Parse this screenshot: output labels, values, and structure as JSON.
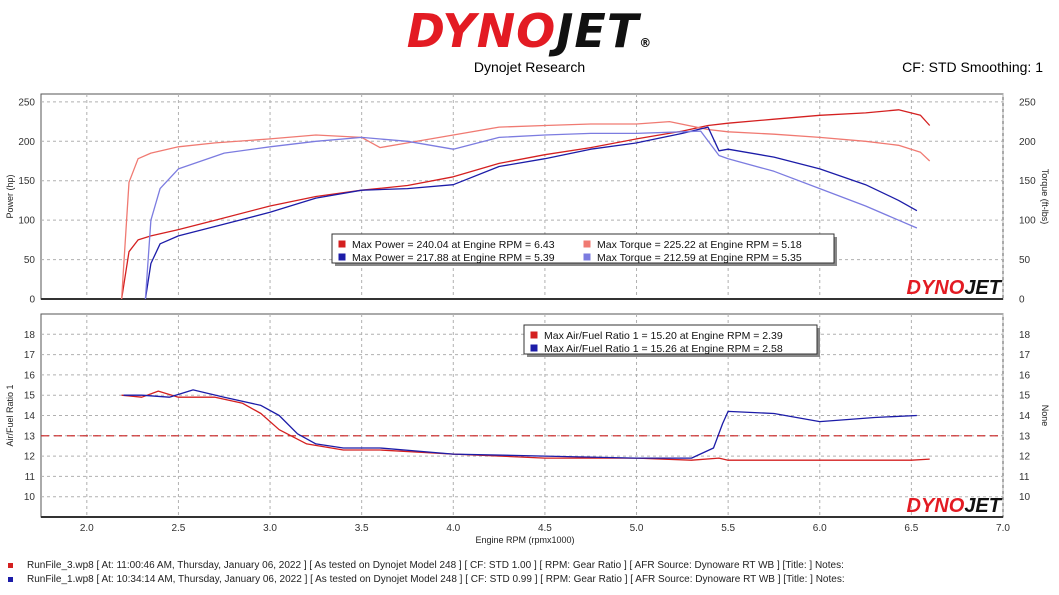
{
  "header": {
    "logo_text_red": "DYNO",
    "logo_text_dark": "JET",
    "logo_reg": "®",
    "subtitle": "Dynojet Research",
    "cf_label": "CF: STD Smoothing: 1"
  },
  "watermark": {
    "red": "DYNO",
    "dark": "JET"
  },
  "colors": {
    "run3": "#d42020",
    "run3_light": "#f07a72",
    "run1": "#1c1ca8",
    "run1_light": "#7c7ce0",
    "ref_line": "#c81e1e",
    "grid": "#b0b0b0"
  },
  "chart_data": [
    {
      "type": "line",
      "title": "",
      "xlabel": "Engine RPM (rpmx1000)",
      "ylabel": "Power (hp)",
      "y2label": "Torque (ft-lbs)",
      "xlim": [
        1.75,
        7.0
      ],
      "ylim": [
        0,
        260
      ],
      "y2lim": [
        0,
        260
      ],
      "x_ticks": [
        2.0,
        2.5,
        3.0,
        3.5,
        4.0,
        4.5,
        5.0,
        5.5,
        6.0,
        6.5,
        7.0
      ],
      "y_ticks": [
        0,
        50,
        100,
        150,
        200,
        250
      ],
      "grid": true,
      "series": [
        {
          "name": "RunFile_3 Power",
          "color": "#d42020",
          "x": [
            2.19,
            2.23,
            2.28,
            2.35,
            2.5,
            2.7,
            3.0,
            3.25,
            3.5,
            3.75,
            4.0,
            4.25,
            4.5,
            4.75,
            5.0,
            5.25,
            5.39,
            5.5,
            5.75,
            6.0,
            6.25,
            6.43,
            6.55,
            6.6
          ],
          "y": [
            0,
            60,
            75,
            80,
            88,
            100,
            118,
            130,
            138,
            144,
            155,
            172,
            183,
            192,
            203,
            213,
            220,
            223,
            228,
            233,
            236,
            240,
            233,
            220
          ]
        },
        {
          "name": "RunFile_3 Torque",
          "color": "#f07a72",
          "x": [
            2.19,
            2.23,
            2.28,
            2.35,
            2.5,
            2.7,
            3.0,
            3.25,
            3.5,
            3.6,
            3.75,
            4.0,
            4.25,
            4.5,
            4.75,
            5.0,
            5.18,
            5.39,
            5.5,
            5.75,
            6.0,
            6.25,
            6.43,
            6.55,
            6.6
          ],
          "y": [
            0,
            148,
            178,
            185,
            193,
            198,
            203,
            208,
            205,
            192,
            198,
            208,
            218,
            220,
            222,
            222,
            225,
            215,
            212,
            209,
            205,
            200,
            195,
            186,
            175
          ]
        },
        {
          "name": "RunFile_1 Power",
          "color": "#1c1ca8",
          "x": [
            2.32,
            2.35,
            2.4,
            2.5,
            2.75,
            3.0,
            3.25,
            3.5,
            3.75,
            4.0,
            4.25,
            4.5,
            4.75,
            5.0,
            5.25,
            5.39,
            5.45,
            5.5,
            5.75,
            6.0,
            6.25,
            6.43,
            6.53
          ],
          "y": [
            0,
            45,
            70,
            80,
            95,
            110,
            128,
            138,
            140,
            145,
            168,
            178,
            190,
            198,
            210,
            218,
            188,
            190,
            180,
            165,
            145,
            125,
            112
          ]
        },
        {
          "name": "RunFile_1 Torque",
          "color": "#7c7ce0",
          "x": [
            2.32,
            2.35,
            2.4,
            2.5,
            2.75,
            3.0,
            3.25,
            3.5,
            3.75,
            4.0,
            4.25,
            4.5,
            4.75,
            5.0,
            5.25,
            5.35,
            5.45,
            5.5,
            5.75,
            6.0,
            6.25,
            6.43,
            6.53
          ],
          "y": [
            0,
            100,
            140,
            165,
            185,
            193,
            200,
            205,
            200,
            190,
            205,
            208,
            210,
            210,
            212,
            213,
            182,
            178,
            162,
            140,
            118,
            100,
            90
          ]
        }
      ],
      "legend": [
        {
          "text": "Max Power = 240.04 at Engine RPM = 6.43",
          "color": "#d42020"
        },
        {
          "text": "Max Power = 217.88 at Engine RPM = 5.39",
          "color": "#1c1ca8"
        },
        {
          "text": "Max Torque = 225.22 at Engine RPM = 5.18",
          "color": "#f07a72"
        },
        {
          "text": "Max Torque = 212.59 at Engine RPM = 5.35",
          "color": "#7c7ce0"
        }
      ]
    },
    {
      "type": "line",
      "title": "",
      "xlabel": "Engine RPM (rpmx1000)",
      "ylabel": "Air/Fuel Ratio 1",
      "y2label": "None",
      "xlim": [
        1.75,
        7.0
      ],
      "ylim": [
        9,
        19
      ],
      "y2lim": [
        9,
        19
      ],
      "y_ticks": [
        10,
        11,
        12,
        13,
        14,
        15,
        16,
        17,
        18
      ],
      "grid": true,
      "reference_line": 13,
      "series": [
        {
          "name": "RunFile_3 AFR",
          "color": "#d42020",
          "x": [
            2.19,
            2.3,
            2.39,
            2.5,
            2.7,
            2.85,
            2.95,
            3.05,
            3.2,
            3.4,
            3.6,
            4.0,
            4.5,
            5.0,
            5.3,
            5.45,
            5.5,
            6.0,
            6.3,
            6.5,
            6.6
          ],
          "y": [
            15.0,
            14.9,
            15.2,
            14.9,
            14.9,
            14.6,
            14.1,
            13.3,
            12.6,
            12.3,
            12.3,
            12.1,
            11.9,
            11.9,
            11.8,
            11.9,
            11.8,
            11.8,
            11.8,
            11.8,
            11.85
          ]
        },
        {
          "name": "RunFile_1 AFR",
          "color": "#1c1ca8",
          "x": [
            2.2,
            2.3,
            2.45,
            2.58,
            2.75,
            2.95,
            3.05,
            3.15,
            3.25,
            3.4,
            3.6,
            4.0,
            4.5,
            5.0,
            5.3,
            5.42,
            5.47,
            5.5,
            5.75,
            6.0,
            6.3,
            6.53
          ],
          "y": [
            15.0,
            15.0,
            14.9,
            15.26,
            14.9,
            14.5,
            14.0,
            13.1,
            12.6,
            12.4,
            12.4,
            12.1,
            12.0,
            11.9,
            11.9,
            12.4,
            13.6,
            14.2,
            14.1,
            13.7,
            13.9,
            14.0
          ]
        }
      ],
      "legend": [
        {
          "text": "Max Air/Fuel Ratio 1 = 15.20 at Engine RPM = 2.39",
          "color": "#d42020"
        },
        {
          "text": "Max Air/Fuel Ratio 1 = 15.26 at Engine RPM = 2.58",
          "color": "#1c1ca8"
        }
      ]
    }
  ],
  "footer": [
    {
      "color": "#d42020",
      "text": "RunFile_3.wp8 [ At: 11:00:46 AM, Thursday, January 06, 2022 ] [ As tested on Dynojet Model 248 ] [ CF: STD 1.00 ] [ RPM: Gear Ratio ] [ AFR Source: Dynoware RT WB ] [Title: ] Notes:"
    },
    {
      "color": "#1c1ca8",
      "text": "RunFile_1.wp8 [ At: 10:34:14 AM, Thursday, January 06, 2022 ] [ As tested on Dynojet Model 248 ] [ CF: STD 0.99 ] [ RPM: Gear Ratio ] [ AFR Source: Dynoware RT WB ] [Title: ] Notes:"
    }
  ]
}
